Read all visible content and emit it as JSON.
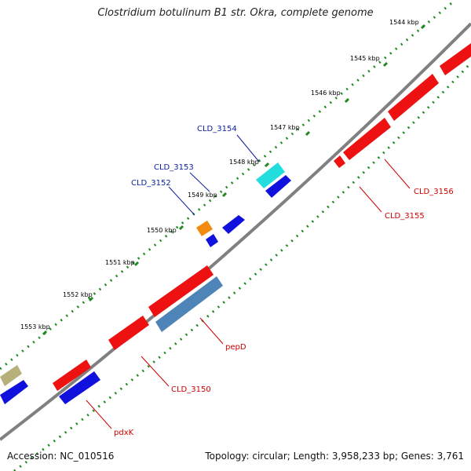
{
  "title": "Clostridium botulinum B1 str. Okra, complete genome",
  "footer": {
    "accession": "Accession: NC_010516",
    "summary": "Topology: circular; Length: 3,958,233 bp; Genes: 3,761"
  },
  "scale_labels": [
    "1544 kbp",
    "1545 kbp",
    "1546 kbp",
    "1547 kbp",
    "1548 kbp",
    "1549 kbp",
    "1550 kbp",
    "1551 kbp",
    "1552 kbp",
    "1553 kbp"
  ],
  "gene_labels": [
    {
      "text": "CLD_3154",
      "strand": "forward"
    },
    {
      "text": "CLD_3153",
      "strand": "forward"
    },
    {
      "text": "CLD_3152",
      "strand": "forward"
    },
    {
      "text": "CLD_3156",
      "strand": "reverse"
    },
    {
      "text": "CLD_3155",
      "strand": "reverse"
    },
    {
      "text": "pepD",
      "strand": "reverse"
    },
    {
      "text": "CLD_3150",
      "strand": "reverse"
    },
    {
      "text": "pdxK",
      "strand": "reverse"
    }
  ],
  "colors": {
    "backbone": "#808080",
    "forward_label": "#0a1ea0",
    "reverse_label": "#cc0000",
    "tick": "#1e8a1e",
    "red_gene": "#ee1111",
    "blue_gene": "#1111dd",
    "steel_gene": "#4f84b8",
    "cyan_gene": "#22dddd",
    "orange_gene": "#f08a10",
    "khaki_gene": "#b8b07a"
  }
}
